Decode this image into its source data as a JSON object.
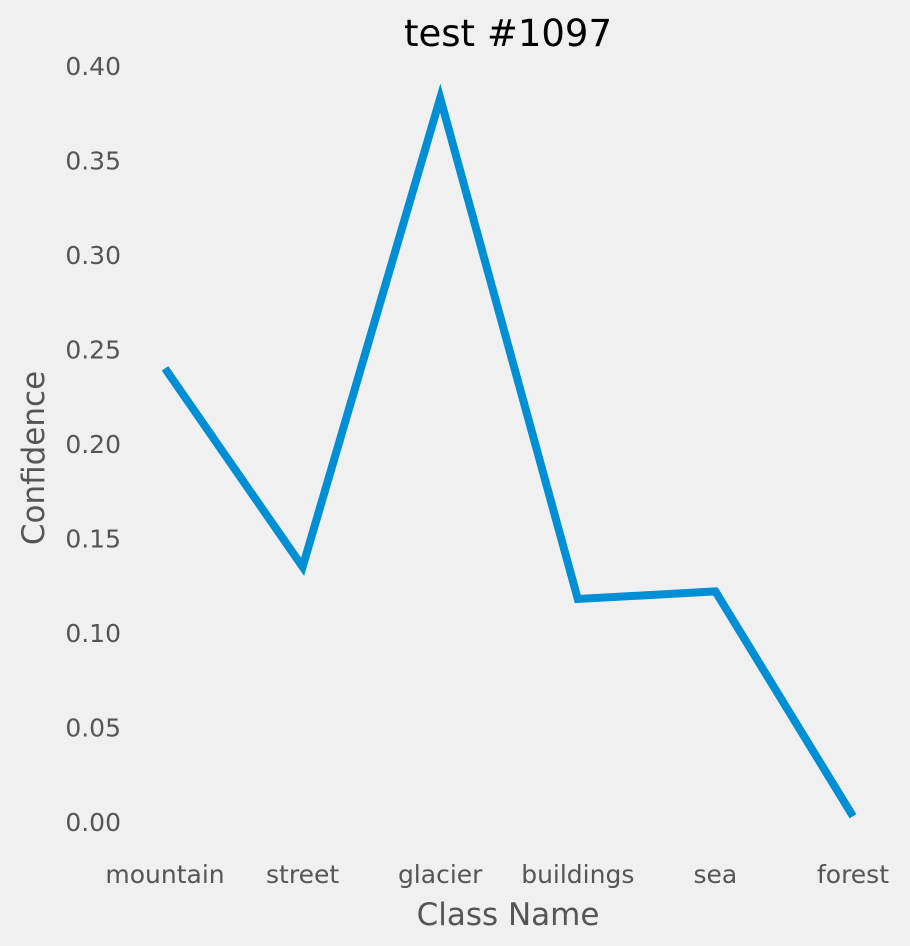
{
  "chart_data": {
    "type": "line",
    "title": "test #1097",
    "xlabel": "Class Name",
    "ylabel": "Confidence",
    "categories": [
      "mountain",
      "street",
      "glacier",
      "buildings",
      "sea",
      "forest"
    ],
    "series": [
      {
        "values": [
          0.24,
          0.135,
          0.383,
          0.118,
          0.122,
          0.003
        ]
      }
    ],
    "ylim": [
      0.0,
      0.4
    ],
    "yticks": [
      "0.00",
      "0.05",
      "0.10",
      "0.15",
      "0.20",
      "0.25",
      "0.30",
      "0.35",
      "0.40"
    ],
    "grid": false,
    "line_color": "#008fd5",
    "background_color": "#f0f0f0",
    "text_color": "#555555"
  }
}
